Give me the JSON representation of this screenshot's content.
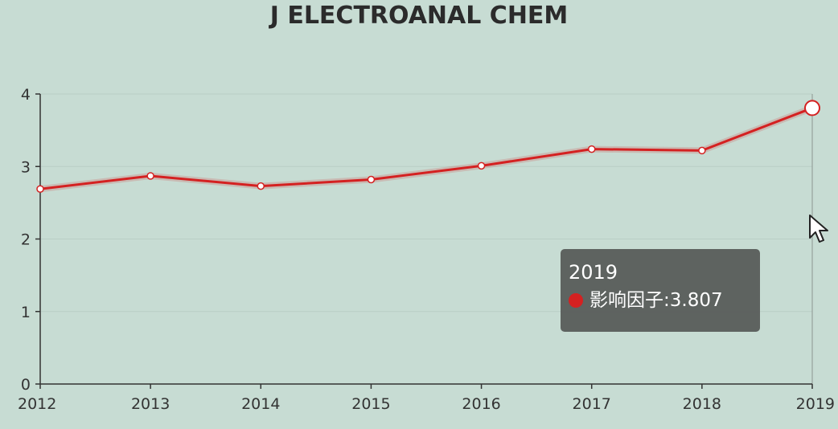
{
  "chart_data": {
    "type": "line",
    "title": "J ELECTROANAL CHEM",
    "x": [
      "2012",
      "2013",
      "2014",
      "2015",
      "2016",
      "2017",
      "2018",
      "2019"
    ],
    "series": [
      {
        "name": "影响因子",
        "values": [
          2.69,
          2.87,
          2.73,
          2.82,
          3.01,
          3.24,
          3.22,
          3.807
        ]
      }
    ],
    "ylim": [
      0,
      4
    ],
    "yticks": [
      "0",
      "1",
      "2",
      "3",
      "4"
    ],
    "xlabel": "",
    "ylabel": "",
    "grid": true,
    "line_color": "#d42121",
    "tooltip": {
      "title": "2019",
      "label": "影响因子",
      "value": "3.807"
    }
  }
}
